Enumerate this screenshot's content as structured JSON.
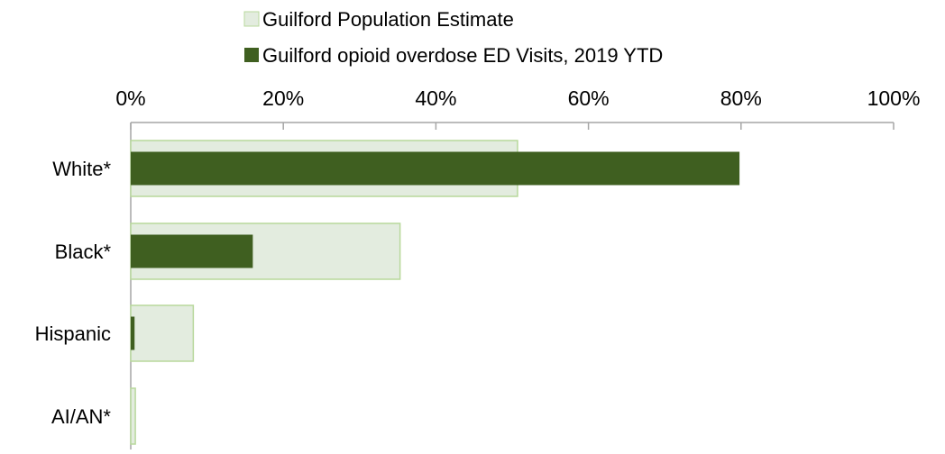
{
  "chart_data": {
    "type": "bar",
    "orientation": "horizontal",
    "categories": [
      "White*",
      "Black*",
      "Hispanic",
      "AI/AN*"
    ],
    "series": [
      {
        "name": "Guilford Population Estimate",
        "values": [
          50.7,
          35.3,
          8.2,
          0.6
        ],
        "color": "#e3ecdf",
        "border": "#b8d89c"
      },
      {
        "name": "Guilford opioid overdose ED Visits, 2019 YTD",
        "values": [
          79.8,
          16.0,
          0.5,
          0.0
        ],
        "color": "#3f5f20"
      }
    ],
    "x_axis": {
      "position": "top",
      "min": 0,
      "max": 100,
      "ticks": [
        0,
        20,
        40,
        60,
        80,
        100
      ],
      "tick_labels": [
        "0%",
        "20%",
        "40%",
        "60%",
        "80%",
        "100%"
      ]
    },
    "legend": {
      "placement": "top",
      "entries": [
        "Guilford Population Estimate",
        "Guilford opioid overdose ED Visits, 2019 YTD"
      ]
    },
    "grid": false,
    "title": "",
    "xlabel": "",
    "ylabel": ""
  }
}
